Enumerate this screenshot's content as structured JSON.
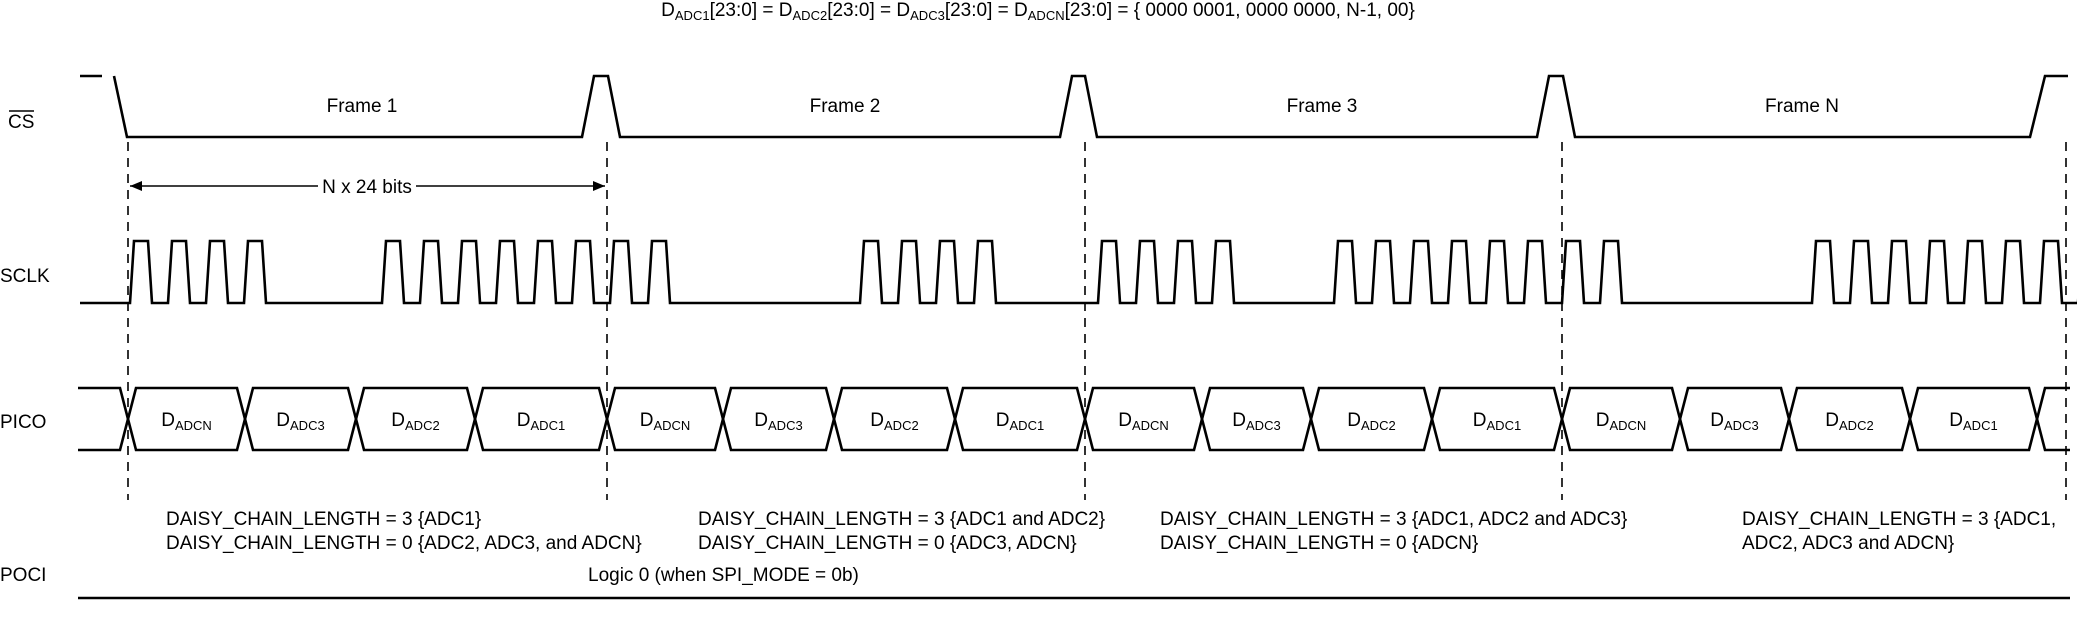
{
  "header": {
    "equation": [
      {
        "base": "D",
        "sub": "ADC1",
        "rest": "[23:0] = "
      },
      {
        "base": "D",
        "sub": "ADC2",
        "rest": "[23:0] = "
      },
      {
        "base": "D",
        "sub": "ADC3",
        "rest": "[23:0] = "
      },
      {
        "base": "D",
        "sub": "ADCN",
        "rest": "[23:0] = { 0000 0001, 0000 0000, N-1, 00}"
      }
    ]
  },
  "signals": {
    "cs": "CS",
    "sclk": "SCLK",
    "pico": "PICO",
    "poci": "POCI"
  },
  "frames": [
    "Frame 1",
    "Frame 2",
    "Frame 3",
    "Frame N"
  ],
  "bits_label": "N x 24 bits",
  "pico_words": [
    "ADCN",
    "ADC3",
    "ADC2",
    "ADC1"
  ],
  "pico_word_base": "D",
  "notes": [
    [
      "DAISY_CHAIN_LENGTH = 3 {ADC1}",
      "DAISY_CHAIN_LENGTH = 0 {ADC2, ADC3, and ADCN}"
    ],
    [
      "DAISY_CHAIN_LENGTH = 3 {ADC1 and ADC2}",
      "DAISY_CHAIN_LENGTH = 0 {ADC3, ADCN}"
    ],
    [
      "DAISY_CHAIN_LENGTH = 3 {ADC1, ADC2 and ADC3}",
      "DAISY_CHAIN_LENGTH = 0 {ADCN}"
    ],
    [
      "DAISY_CHAIN_LENGTH = 3 {ADC1,",
      "ADC2, ADC3 and ADCN}"
    ]
  ],
  "poci_value": "Logic 0 (when SPI_MODE = 0b)"
}
